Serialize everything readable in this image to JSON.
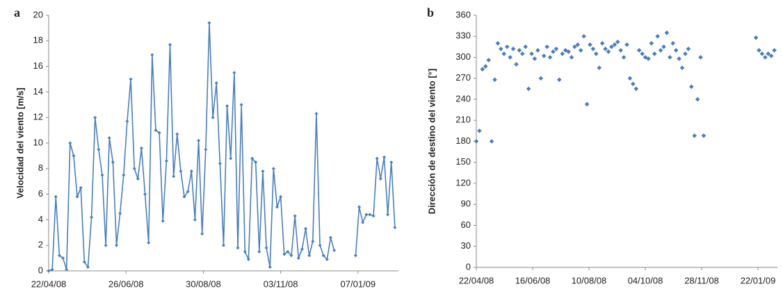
{
  "chart_data": [
    {
      "type": "line",
      "panel_label": "a",
      "y_label": "Velocidad del viento [m/s]",
      "color": "#4a7ebb",
      "xlim": [
        "2008-04-22",
        "2009-02-10"
      ],
      "ylim": [
        0,
        20
      ],
      "yticks": [
        0,
        2,
        4,
        6,
        8,
        10,
        12,
        14,
        16,
        18,
        20
      ],
      "xticks": [
        {
          "value": "2008-04-22",
          "label": "22/04/08"
        },
        {
          "value": "2008-06-26",
          "label": "26/06/08"
        },
        {
          "value": "2008-08-30",
          "label": "30/08/08"
        },
        {
          "value": "2008-11-03",
          "label": "03/11/08"
        },
        {
          "value": "2009-01-07",
          "label": "07/01/09"
        }
      ],
      "x": [
        "2008-04-22",
        "2008-04-25",
        "2008-04-28",
        "2008-05-01",
        "2008-05-04",
        "2008-05-07",
        "2008-05-10",
        "2008-05-13",
        "2008-05-16",
        "2008-05-19",
        "2008-05-22",
        "2008-05-25",
        "2008-05-28",
        "2008-05-31",
        "2008-06-03",
        "2008-06-06",
        "2008-06-09",
        "2008-06-12",
        "2008-06-15",
        "2008-06-18",
        "2008-06-21",
        "2008-06-24",
        "2008-06-27",
        "2008-06-30",
        "2008-07-03",
        "2008-07-06",
        "2008-07-09",
        "2008-07-12",
        "2008-07-15",
        "2008-07-18",
        "2008-07-21",
        "2008-07-24",
        "2008-07-27",
        "2008-07-30",
        "2008-08-02",
        "2008-08-05",
        "2008-08-08",
        "2008-08-11",
        "2008-08-14",
        "2008-08-17",
        "2008-08-20",
        "2008-08-23",
        "2008-08-26",
        "2008-08-29",
        "2008-09-01",
        "2008-09-04",
        "2008-09-07",
        "2008-09-10",
        "2008-09-13",
        "2008-09-16",
        "2008-09-19",
        "2008-09-22",
        "2008-09-25",
        "2008-09-28",
        "2008-10-01",
        "2008-10-04",
        "2008-10-07",
        "2008-10-10",
        "2008-10-13",
        "2008-10-16",
        "2008-10-19",
        "2008-10-22",
        "2008-10-25",
        "2008-10-28",
        "2008-10-31",
        "2008-11-03",
        "2008-11-06",
        "2008-11-09",
        "2008-11-12",
        "2008-11-15",
        "2008-11-18",
        "2008-11-21",
        "2008-11-24",
        "2008-11-27",
        "2008-11-30",
        "2008-12-03",
        "2008-12-06",
        "2008-12-09",
        "2008-12-12",
        "2008-12-15",
        "2008-12-18",
        "2008-12-21",
        "2008-12-24",
        "2008-12-27",
        "2008-12-30",
        "2009-01-02",
        "2009-01-05",
        "2009-01-08",
        "2009-01-11",
        "2009-01-14",
        "2009-01-17",
        "2009-01-20",
        "2009-01-23",
        "2009-01-26",
        "2009-01-29",
        "2009-02-01",
        "2009-02-04",
        "2009-02-07"
      ],
      "values": [
        0,
        0.1,
        5.8,
        1.2,
        1.0,
        0.1,
        10,
        9,
        5.8,
        6.5,
        0.7,
        0.3,
        4.2,
        12,
        9.5,
        7.5,
        2,
        10.4,
        8.5,
        2,
        4.5,
        7.5,
        11.7,
        15,
        8,
        7.2,
        9.6,
        6,
        2.2,
        16.9,
        11,
        10.8,
        3.9,
        8.6,
        17.7,
        7.4,
        10.7,
        7.8,
        5.8,
        6.2,
        7.8,
        4,
        10.2,
        2.9,
        9.5,
        19.4,
        12,
        14.7,
        8.4,
        2,
        12.9,
        8.8,
        15.5,
        1.8,
        13,
        1.5,
        0.9,
        8.8,
        8.5,
        1.5,
        7.8,
        1.8,
        0.3,
        8,
        5,
        5.8,
        1.3,
        1.5,
        1.2,
        4.3,
        1.0,
        1.7,
        3.3,
        1.2,
        2.3,
        12.3,
        2,
        1.2,
        0.9,
        2.6,
        1.6,
        null,
        null,
        null,
        null,
        null,
        1.2,
        5,
        3.8,
        4.4,
        4.4,
        4.3,
        8.8,
        7.2,
        8.9,
        4.4,
        8.5,
        3.4
      ]
    },
    {
      "type": "scatter",
      "panel_label": "b",
      "y_label": "Dirección de destino del viento [°]",
      "color": "#4a7ebb",
      "xlim": [
        "2008-04-22",
        "2009-02-10"
      ],
      "ylim": [
        0,
        360
      ],
      "yticks": [
        0,
        30,
        60,
        90,
        120,
        150,
        180,
        210,
        240,
        270,
        300,
        330,
        360
      ],
      "xticks": [
        {
          "value": "2008-04-22",
          "label": "22/04/08"
        },
        {
          "value": "2008-06-16",
          "label": "16/06/08"
        },
        {
          "value": "2008-08-10",
          "label": "10/08/08"
        },
        {
          "value": "2008-10-04",
          "label": "04/10/08"
        },
        {
          "value": "2008-11-28",
          "label": "28/11/08"
        },
        {
          "value": "2009-01-22",
          "label": "22/01/09"
        }
      ],
      "x": [
        "2008-04-22",
        "2008-04-25",
        "2008-04-28",
        "2008-05-01",
        "2008-05-04",
        "2008-05-07",
        "2008-05-10",
        "2008-05-13",
        "2008-05-16",
        "2008-05-19",
        "2008-05-22",
        "2008-05-25",
        "2008-05-28",
        "2008-05-31",
        "2008-06-03",
        "2008-06-06",
        "2008-06-09",
        "2008-06-12",
        "2008-06-15",
        "2008-06-18",
        "2008-06-21",
        "2008-06-24",
        "2008-06-27",
        "2008-06-30",
        "2008-07-03",
        "2008-07-06",
        "2008-07-09",
        "2008-07-12",
        "2008-07-15",
        "2008-07-18",
        "2008-07-21",
        "2008-07-24",
        "2008-07-27",
        "2008-07-30",
        "2008-08-02",
        "2008-08-05",
        "2008-08-08",
        "2008-08-11",
        "2008-08-14",
        "2008-08-17",
        "2008-08-20",
        "2008-08-23",
        "2008-08-26",
        "2008-08-29",
        "2008-09-01",
        "2008-09-04",
        "2008-09-07",
        "2008-09-10",
        "2008-09-13",
        "2008-09-16",
        "2008-09-19",
        "2008-09-22",
        "2008-09-25",
        "2008-09-28",
        "2008-10-01",
        "2008-10-04",
        "2008-10-07",
        "2008-10-10",
        "2008-10-13",
        "2008-10-16",
        "2008-10-19",
        "2008-10-22",
        "2008-10-25",
        "2008-10-28",
        "2008-10-31",
        "2008-11-03",
        "2008-11-06",
        "2008-11-09",
        "2008-11-12",
        "2008-11-15",
        "2008-11-18",
        "2008-11-21",
        "2008-11-24",
        "2008-11-27",
        "2008-11-30",
        "2008-12-03",
        "2008-12-06",
        "2008-12-09",
        "2008-12-12",
        "2008-12-15",
        "2008-12-18",
        "2008-12-21",
        "2008-12-24",
        "2008-12-27",
        "2008-12-30",
        "2009-01-02",
        "2009-01-05",
        "2009-01-08",
        "2009-01-11",
        "2009-01-14",
        "2009-01-17",
        "2009-01-20",
        "2009-01-23",
        "2009-01-26",
        "2009-01-29",
        "2009-02-01",
        "2009-02-04",
        "2009-02-07"
      ],
      "values": [
        180,
        195,
        283,
        287,
        296,
        180,
        268,
        320,
        312,
        305,
        315,
        300,
        312,
        290,
        310,
        305,
        315,
        255,
        305,
        298,
        310,
        270,
        302,
        315,
        300,
        308,
        312,
        268,
        305,
        310,
        308,
        300,
        315,
        318,
        310,
        330,
        233,
        318,
        312,
        305,
        285,
        320,
        312,
        308,
        315,
        318,
        322,
        310,
        300,
        318,
        270,
        262,
        255,
        310,
        305,
        300,
        298,
        320,
        305,
        330,
        310,
        315,
        335,
        300,
        320,
        310,
        298,
        285,
        305,
        312,
        258,
        188,
        240,
        300,
        188,
        null,
        null,
        null,
        null,
        null,
        null,
        null,
        null,
        null,
        null,
        null,
        null,
        null,
        null,
        null,
        null,
        328,
        310,
        305,
        300,
        305,
        302,
        310
      ]
    }
  ]
}
